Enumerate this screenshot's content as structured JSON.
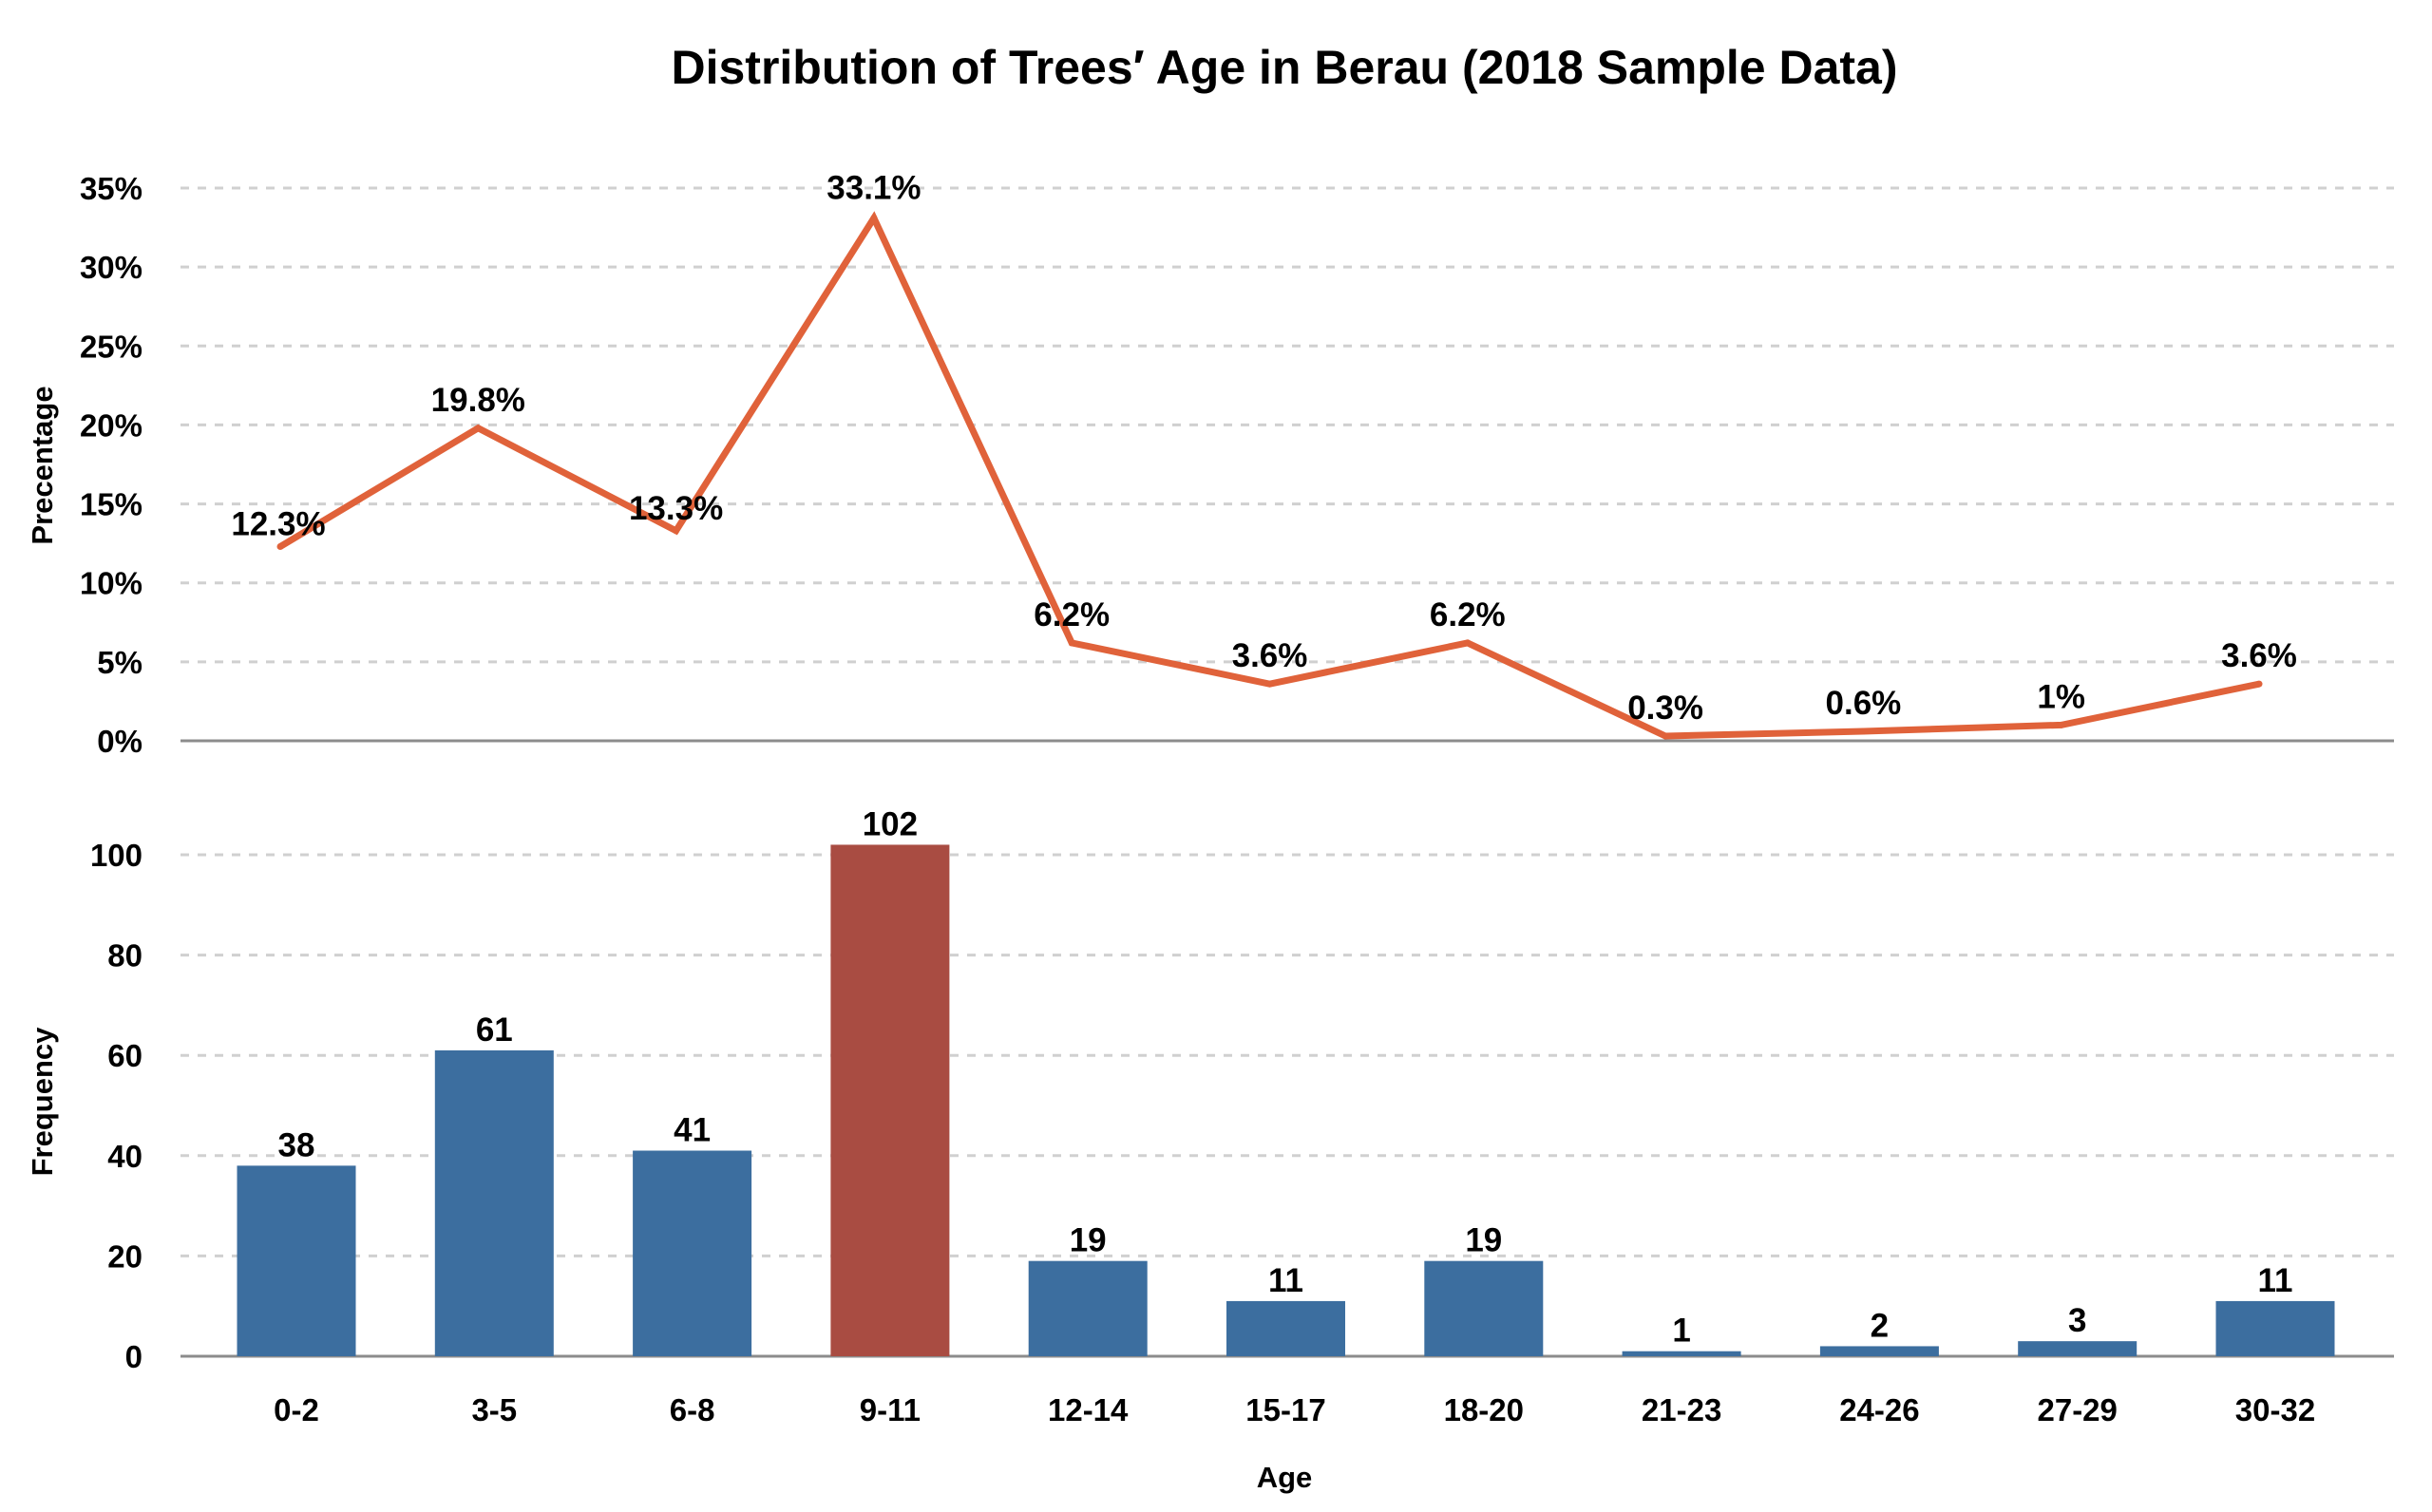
{
  "chart_data": {
    "title": "Distribution of Trees′ Age in Berau (2018 Sample Data)",
    "xlabel": "Age",
    "categories": [
      "0-2",
      "3-5",
      "6-8",
      "9-11",
      "12-14",
      "15-17",
      "18-20",
      "21-23",
      "24-26",
      "27-29",
      "30-32"
    ],
    "charts": [
      {
        "type": "line",
        "ylabel": "Precentage",
        "ylim": [
          0,
          35
        ],
        "yticks": [
          "0%",
          "5%",
          "10%",
          "15%",
          "20%",
          "25%",
          "30%",
          "35%"
        ],
        "grid": true,
        "color": "#E0623A",
        "values": [
          12.3,
          19.8,
          13.3,
          33.1,
          6.2,
          3.6,
          6.2,
          0.3,
          0.6,
          1,
          3.6
        ],
        "labels": [
          "12.3%",
          "19.8%",
          "13.3%",
          "33.1%",
          "6.2%",
          "3.6%",
          "6.2%",
          "0.3%",
          "0.6%",
          "1%",
          "3.6%"
        ]
      },
      {
        "type": "bar",
        "ylabel": "Frequency",
        "ylim": [
          0,
          110
        ],
        "yticks": [
          "0",
          "20",
          "40",
          "60",
          "80",
          "100"
        ],
        "grid": true,
        "color": "#3C6E9F",
        "highlight_color": "#A94C42",
        "highlight_category": "9-11",
        "values": [
          38,
          61,
          41,
          102,
          19,
          11,
          19,
          1,
          2,
          3,
          11
        ],
        "labels": [
          "38",
          "61",
          "41",
          "102",
          "19",
          "11",
          "19",
          "1",
          "2",
          "3",
          "11"
        ]
      }
    ]
  }
}
